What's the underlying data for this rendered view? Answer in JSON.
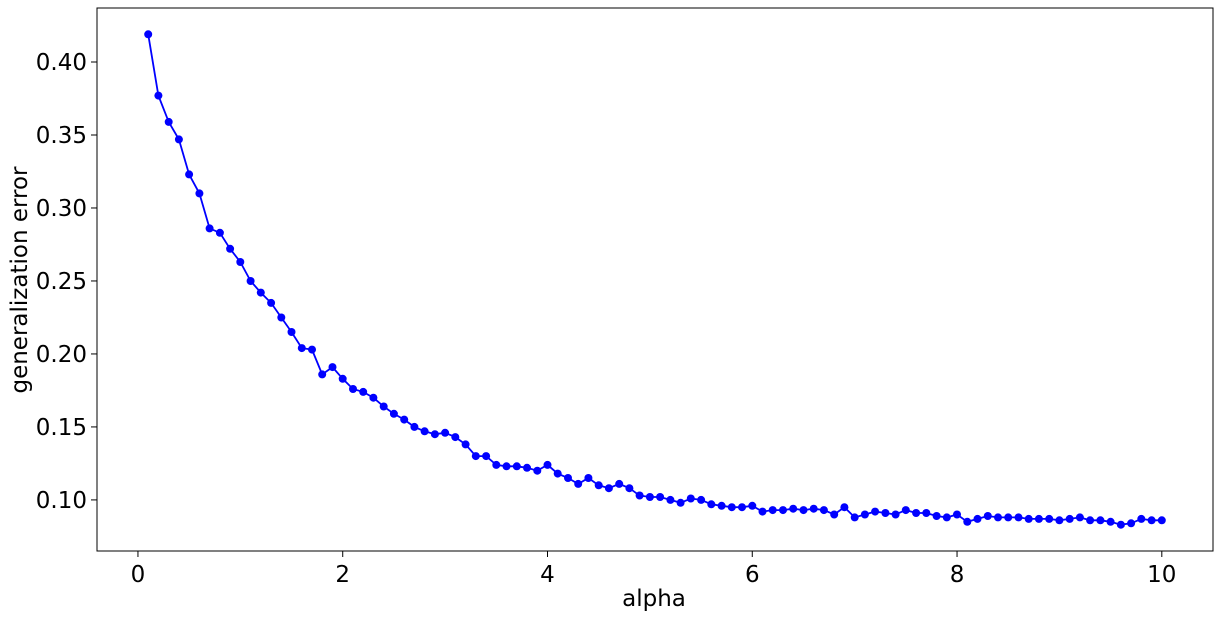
{
  "chart_data": {
    "type": "line",
    "title": "",
    "xlabel": "alpha",
    "ylabel": "generalization error",
    "xlim": [
      -0.4,
      10.5
    ],
    "ylim": [
      0.065,
      0.437
    ],
    "xticks": [
      0,
      2,
      4,
      6,
      8,
      10
    ],
    "xtick_labels": [
      "0",
      "2",
      "4",
      "6",
      "8",
      "10"
    ],
    "yticks": [
      0.1,
      0.15,
      0.2,
      0.25,
      0.3,
      0.35,
      0.4
    ],
    "ytick_labels": [
      "0.10",
      "0.15",
      "0.20",
      "0.25",
      "0.30",
      "0.35",
      "0.40"
    ],
    "grid": false,
    "legend": "none",
    "color": "#0000ff",
    "marker": "circle",
    "x": [
      0.1,
      0.2,
      0.3,
      0.4,
      0.5,
      0.6,
      0.7,
      0.8,
      0.9,
      1.0,
      1.1,
      1.2,
      1.3,
      1.4,
      1.5,
      1.6,
      1.7,
      1.8,
      1.9,
      2.0,
      2.1,
      2.2,
      2.3,
      2.4,
      2.5,
      2.6,
      2.7,
      2.8,
      2.9,
      3.0,
      3.1,
      3.2,
      3.3,
      3.4,
      3.5,
      3.6,
      3.7,
      3.8,
      3.9,
      4.0,
      4.1,
      4.2,
      4.3,
      4.4,
      4.5,
      4.6,
      4.7,
      4.8,
      4.9,
      5.0,
      5.1,
      5.2,
      5.3,
      5.4,
      5.5,
      5.6,
      5.7,
      5.8,
      5.9,
      6.0,
      6.1,
      6.2,
      6.3,
      6.4,
      6.5,
      6.6,
      6.7,
      6.8,
      6.9,
      7.0,
      7.1,
      7.2,
      7.3,
      7.4,
      7.5,
      7.6,
      7.7,
      7.8,
      7.9,
      8.0,
      8.1,
      8.2,
      8.3,
      8.4,
      8.5,
      8.6,
      8.7,
      8.8,
      8.9,
      9.0,
      9.1,
      9.2,
      9.3,
      9.4,
      9.5,
      9.6,
      9.7,
      9.8,
      9.9,
      10.0
    ],
    "y": [
      0.419,
      0.377,
      0.359,
      0.347,
      0.323,
      0.31,
      0.286,
      0.283,
      0.272,
      0.263,
      0.25,
      0.242,
      0.235,
      0.225,
      0.215,
      0.204,
      0.203,
      0.186,
      0.191,
      0.183,
      0.176,
      0.174,
      0.17,
      0.164,
      0.159,
      0.155,
      0.15,
      0.147,
      0.145,
      0.146,
      0.143,
      0.138,
      0.13,
      0.13,
      0.124,
      0.123,
      0.123,
      0.122,
      0.12,
      0.124,
      0.118,
      0.115,
      0.111,
      0.115,
      0.11,
      0.108,
      0.111,
      0.108,
      0.103,
      0.102,
      0.102,
      0.1,
      0.098,
      0.101,
      0.1,
      0.097,
      0.096,
      0.095,
      0.095,
      0.096,
      0.092,
      0.093,
      0.093,
      0.094,
      0.093,
      0.094,
      0.093,
      0.09,
      0.095,
      0.088,
      0.09,
      0.092,
      0.091,
      0.09,
      0.093,
      0.091,
      0.091,
      0.089,
      0.088,
      0.09,
      0.085,
      0.087,
      0.089,
      0.088,
      0.088,
      0.088,
      0.087,
      0.087,
      0.087,
      0.086,
      0.087,
      0.088,
      0.086,
      0.086,
      0.085,
      0.083,
      0.084,
      0.087,
      0.086,
      0.086
    ]
  }
}
